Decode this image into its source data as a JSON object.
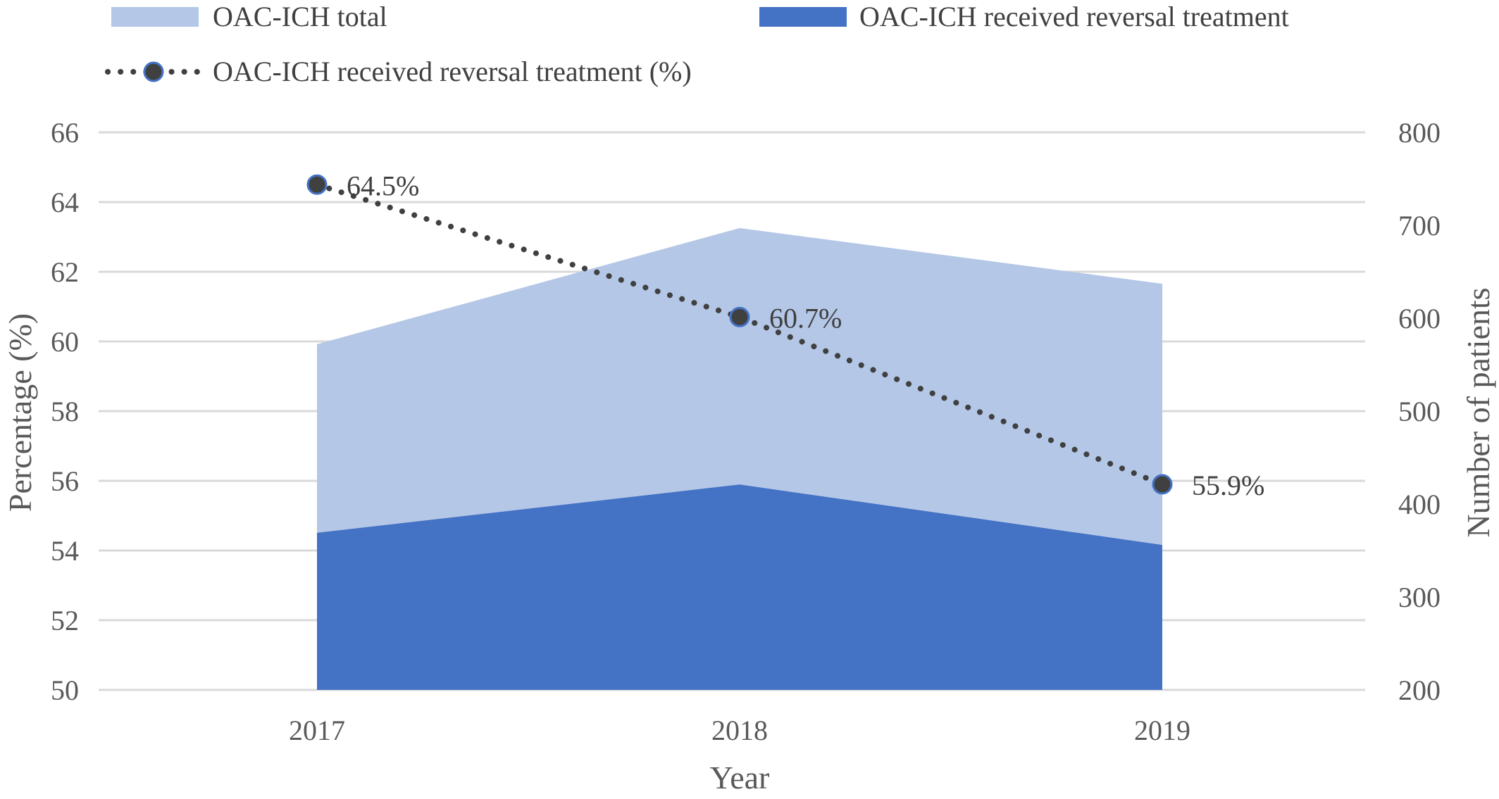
{
  "chart_data": {
    "type": "area",
    "x": [
      "2017",
      "2018",
      "2019"
    ],
    "xlabel": "Year",
    "ylabel": "Percentage (%)",
    "y2label": "Number of patients",
    "ylim": [
      50,
      66
    ],
    "yticks": [
      "50",
      "52",
      "54",
      "56",
      "58",
      "60",
      "62",
      "64",
      "66"
    ],
    "y2lim": [
      200,
      800
    ],
    "y2ticks": [
      "200",
      "300",
      "400",
      "500",
      "600",
      "700",
      "800"
    ],
    "grid": true,
    "legend_position": "top",
    "series": [
      {
        "name": "OAC-ICH total",
        "kind": "area",
        "axis": "right",
        "values": [
          572,
          697,
          637
        ],
        "color": "#b4c7e7"
      },
      {
        "name": "OAC-ICH received reversal treatment",
        "kind": "area",
        "axis": "right",
        "values": [
          369,
          421,
          356
        ],
        "color": "#4472c4"
      },
      {
        "name": "OAC-ICH received reversal treatment (%)",
        "kind": "line",
        "axis": "left",
        "values": [
          64.5,
          60.7,
          55.9
        ],
        "labels": [
          "64.5%",
          "60.7%",
          "55.9%"
        ],
        "line_color": "#404040",
        "marker_color": "#404040",
        "marker_edge": "#4472c4"
      }
    ]
  }
}
